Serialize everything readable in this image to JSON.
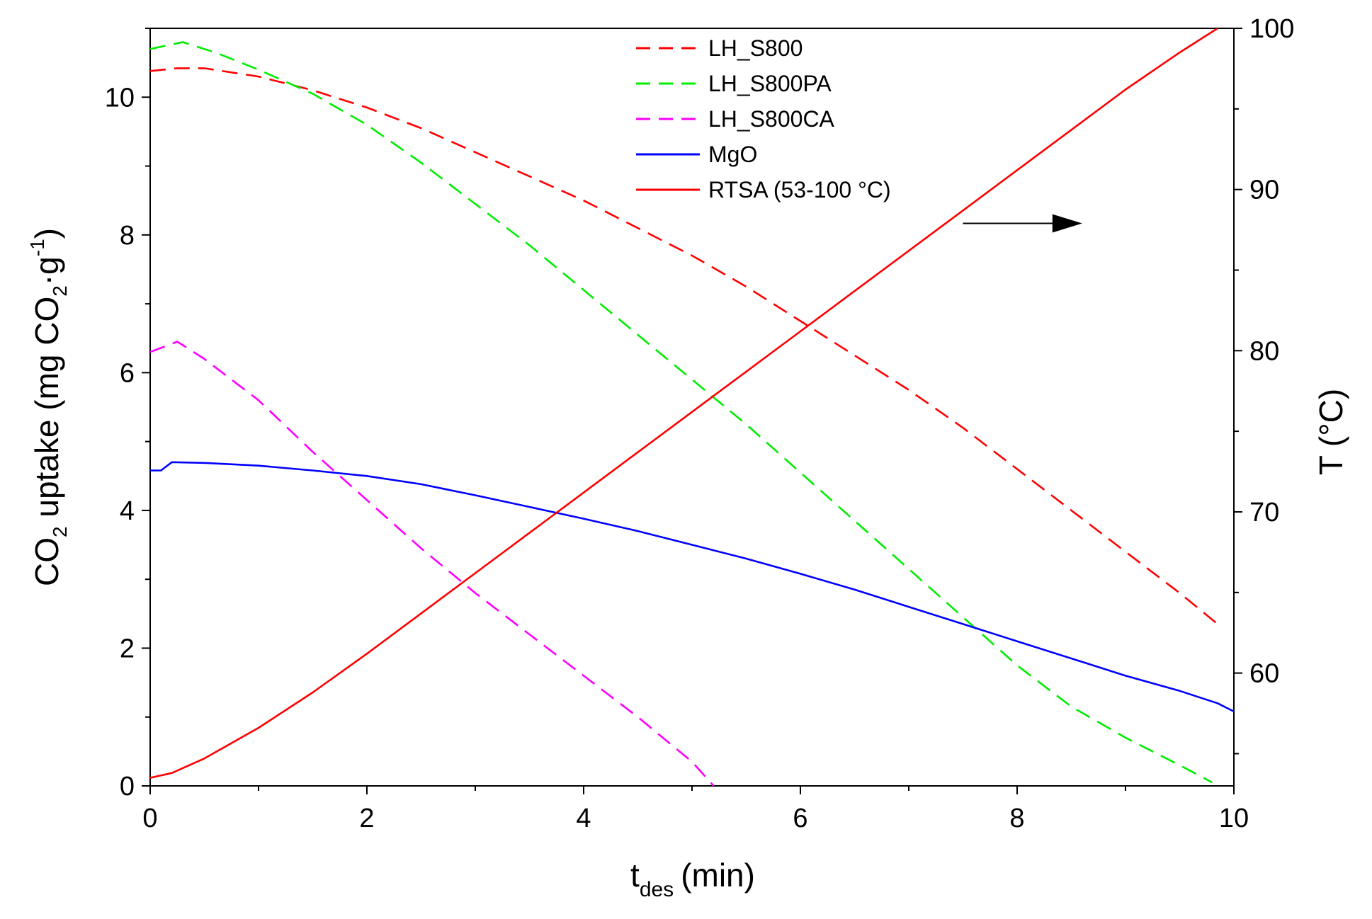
{
  "chart_data": {
    "type": "line",
    "x_axis": {
      "label_main": "t",
      "label_sub": "des",
      "label_unit": "(min)",
      "range": [
        0,
        10
      ],
      "major_ticks": [
        0,
        2,
        4,
        6,
        8,
        10
      ],
      "tick_labels": [
        "0",
        "2",
        "4",
        "6",
        "8",
        "10"
      ],
      "minor_ticks": [
        1,
        3,
        5,
        7,
        9
      ]
    },
    "y_left": {
      "label_a": "CO",
      "label_b": "2",
      "label_c": " uptake (mg CO",
      "label_d": "2",
      "label_e": "·g",
      "label_f": "-1",
      "label_g": ")",
      "range": [
        0,
        11
      ],
      "major_ticks": [
        0,
        2,
        4,
        6,
        8,
        10
      ],
      "tick_labels": [
        "0",
        "2",
        "4",
        "6",
        "8",
        "10"
      ],
      "minor_ticks": [
        1,
        3,
        5,
        7,
        9,
        11
      ]
    },
    "y_right": {
      "label": "T (°C)",
      "range": [
        53,
        100
      ],
      "major_ticks": [
        60,
        70,
        80,
        90,
        100
      ],
      "tick_labels": [
        "60",
        "70",
        "80",
        "90",
        "100"
      ],
      "minor_ticks": [
        55,
        65,
        75,
        85,
        95
      ]
    },
    "series": [
      {
        "name": "LH_S800",
        "color": "#ff0000",
        "style": "dashed",
        "axis": "left",
        "points": [
          [
            0.0,
            10.38
          ],
          [
            0.25,
            10.42
          ],
          [
            0.5,
            10.42
          ],
          [
            1.0,
            10.3
          ],
          [
            1.5,
            10.1
          ],
          [
            2.0,
            9.85
          ],
          [
            2.5,
            9.55
          ],
          [
            3.0,
            9.2
          ],
          [
            3.5,
            8.85
          ],
          [
            4.0,
            8.5
          ],
          [
            4.5,
            8.1
          ],
          [
            5.0,
            7.7
          ],
          [
            5.5,
            7.25
          ],
          [
            6.0,
            6.75
          ],
          [
            6.5,
            6.25
          ],
          [
            7.0,
            5.75
          ],
          [
            7.5,
            5.2
          ],
          [
            8.0,
            4.6
          ],
          [
            8.5,
            4.0
          ],
          [
            9.0,
            3.4
          ],
          [
            9.5,
            2.8
          ],
          [
            9.85,
            2.35
          ]
        ]
      },
      {
        "name": "LH_S800PA",
        "color": "#00ee00",
        "style": "dashed",
        "axis": "left",
        "points": [
          [
            0.0,
            10.7
          ],
          [
            0.3,
            10.8
          ],
          [
            0.6,
            10.65
          ],
          [
            1.0,
            10.4
          ],
          [
            1.5,
            10.05
          ],
          [
            2.0,
            9.6
          ],
          [
            2.5,
            9.05
          ],
          [
            3.0,
            8.45
          ],
          [
            3.5,
            7.85
          ],
          [
            4.0,
            7.2
          ],
          [
            4.5,
            6.55
          ],
          [
            5.0,
            5.9
          ],
          [
            5.5,
            5.25
          ],
          [
            6.0,
            4.55
          ],
          [
            6.5,
            3.85
          ],
          [
            7.0,
            3.15
          ],
          [
            7.5,
            2.45
          ],
          [
            8.0,
            1.75
          ],
          [
            8.5,
            1.15
          ],
          [
            9.0,
            0.7
          ],
          [
            9.5,
            0.3
          ],
          [
            9.8,
            0.05
          ]
        ]
      },
      {
        "name": "LH_S800CA",
        "color": "#ff00ff",
        "style": "dashed",
        "axis": "left",
        "points": [
          [
            0.0,
            6.3
          ],
          [
            0.25,
            6.45
          ],
          [
            0.5,
            6.2
          ],
          [
            1.0,
            5.6
          ],
          [
            1.5,
            4.85
          ],
          [
            2.0,
            4.15
          ],
          [
            2.5,
            3.45
          ],
          [
            3.0,
            2.8
          ],
          [
            3.5,
            2.2
          ],
          [
            4.0,
            1.6
          ],
          [
            4.5,
            1.0
          ],
          [
            5.0,
            0.35
          ],
          [
            5.2,
            0.0
          ]
        ]
      },
      {
        "name": "MgO",
        "color": "#0000ff",
        "style": "solid",
        "axis": "left",
        "points": [
          [
            0.0,
            4.58
          ],
          [
            0.1,
            4.58
          ],
          [
            0.2,
            4.7
          ],
          [
            0.5,
            4.69
          ],
          [
            1.0,
            4.65
          ],
          [
            1.5,
            4.58
          ],
          [
            2.0,
            4.5
          ],
          [
            2.5,
            4.38
          ],
          [
            3.0,
            4.22
          ],
          [
            3.5,
            4.05
          ],
          [
            4.0,
            3.88
          ],
          [
            4.5,
            3.7
          ],
          [
            5.0,
            3.5
          ],
          [
            5.5,
            3.3
          ],
          [
            6.0,
            3.08
          ],
          [
            6.5,
            2.85
          ],
          [
            7.0,
            2.6
          ],
          [
            7.5,
            2.35
          ],
          [
            8.0,
            2.1
          ],
          [
            8.5,
            1.85
          ],
          [
            9.0,
            1.6
          ],
          [
            9.5,
            1.38
          ],
          [
            9.85,
            1.2
          ],
          [
            10.0,
            1.08
          ]
        ]
      },
      {
        "name": "RTSA (53-100 °C)",
        "color": "#ff0000",
        "style": "solid",
        "axis": "right",
        "points": [
          [
            0.0,
            53.5
          ],
          [
            0.2,
            53.8
          ],
          [
            0.5,
            54.7
          ],
          [
            1.0,
            56.6
          ],
          [
            1.5,
            58.8
          ],
          [
            2.0,
            61.2
          ],
          [
            2.5,
            63.7
          ],
          [
            3.0,
            66.2
          ],
          [
            3.5,
            68.7
          ],
          [
            4.0,
            71.2
          ],
          [
            4.5,
            73.7
          ],
          [
            5.0,
            76.2
          ],
          [
            5.5,
            78.7
          ],
          [
            6.0,
            81.2
          ],
          [
            6.5,
            83.7
          ],
          [
            7.0,
            86.2
          ],
          [
            7.5,
            88.7
          ],
          [
            8.0,
            91.2
          ],
          [
            8.5,
            93.7
          ],
          [
            9.0,
            96.2
          ],
          [
            9.5,
            98.5
          ],
          [
            9.85,
            100.0
          ]
        ]
      }
    ],
    "legend_position": "top-center",
    "annotation": {
      "type": "arrow",
      "direction": "right",
      "meaning": "RTSA curve belongs to right axis",
      "from": [
        7.5,
        87.9
      ],
      "to": [
        8.6,
        87.9
      ]
    }
  }
}
